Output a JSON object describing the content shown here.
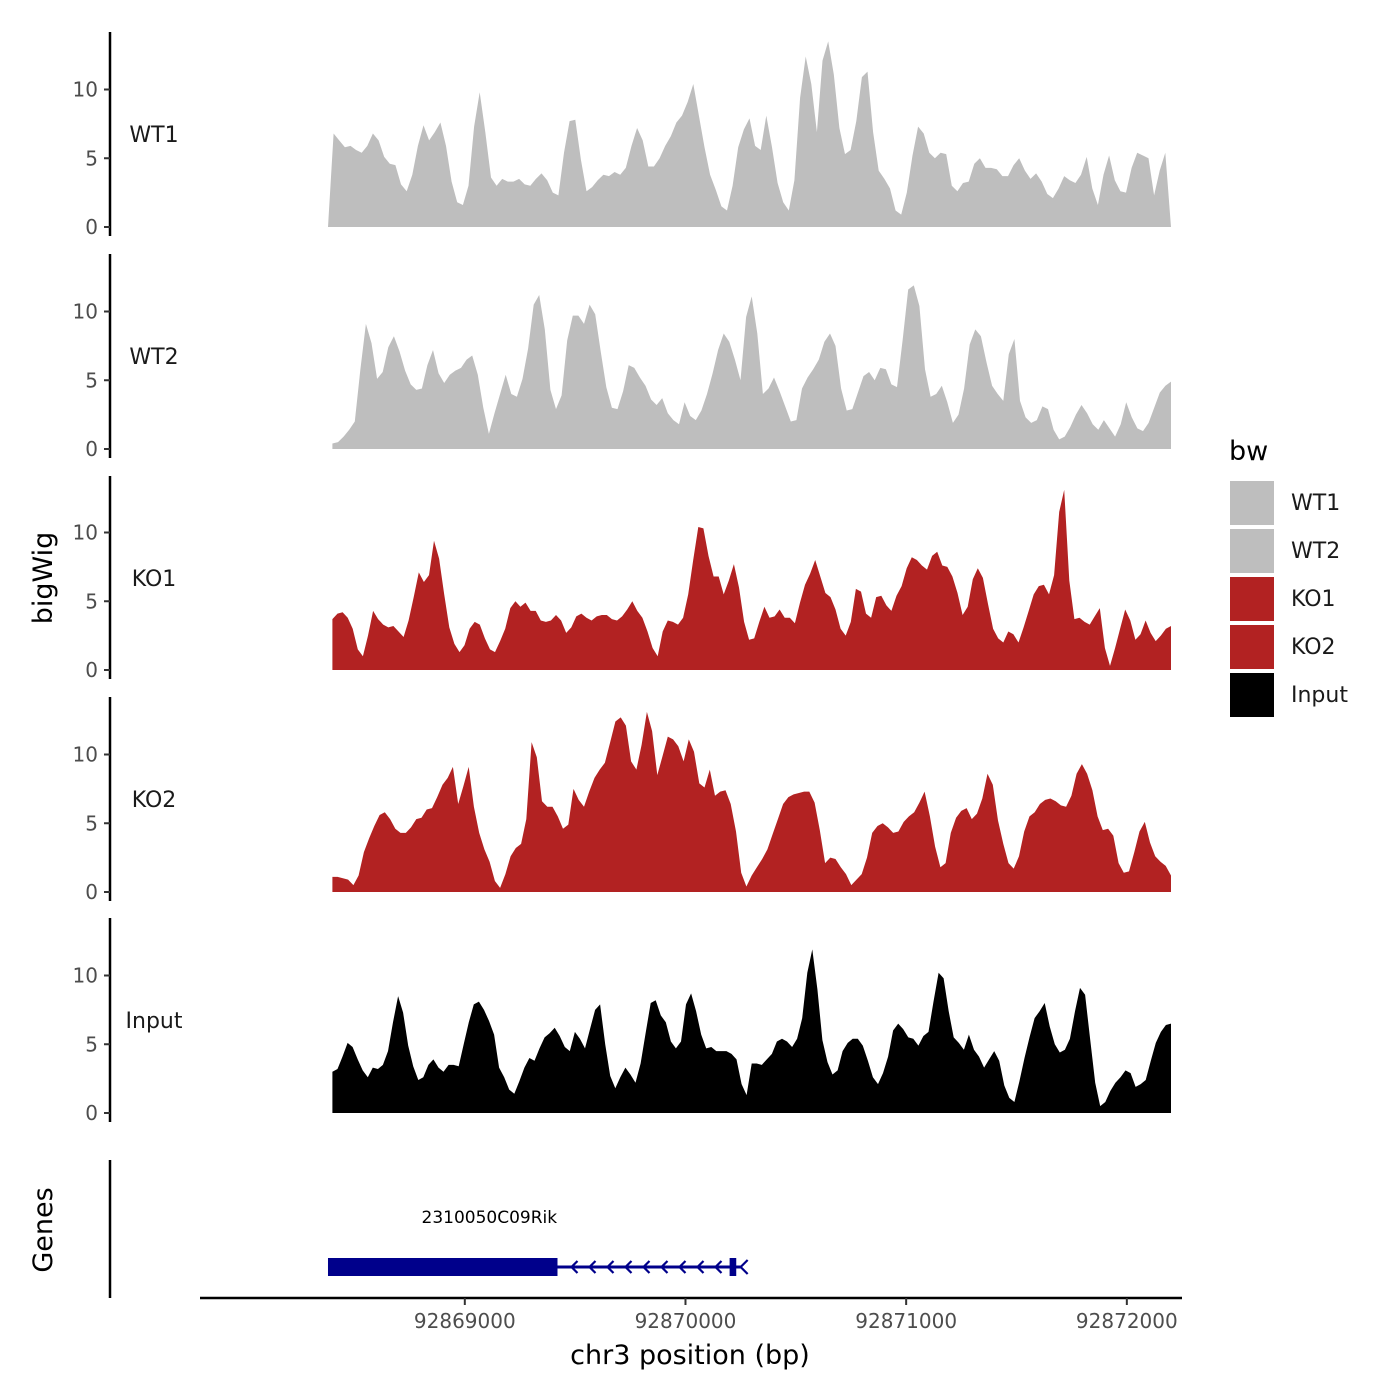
{
  "chart_data": {
    "type": "area",
    "ylabel": "bigWig",
    "xlabel": "chr3 position (bp)",
    "genes_panel_label": "Genes",
    "x_range": [
      92867800,
      92872250
    ],
    "x_ticks": [
      92869000,
      92870000,
      92871000,
      92872000
    ],
    "x_tick_labels": [
      "92869000",
      "92870000",
      "92871000",
      "92872000"
    ],
    "y_range": [
      0,
      14
    ],
    "y_ticks": [
      0,
      5,
      10
    ],
    "y_tick_labels": [
      "0",
      "5",
      "10"
    ],
    "legend": {
      "title": "bw",
      "entries": [
        {
          "label": "WT1",
          "color": "#bebebe"
        },
        {
          "label": "WT2",
          "color": "#bebebe"
        },
        {
          "label": "KO1",
          "color": "#b22222"
        },
        {
          "label": "KO2",
          "color": "#b22222"
        },
        {
          "label": "Input",
          "color": "#000000"
        }
      ]
    },
    "series": [
      {
        "name": "WT1",
        "color": "#bebebe",
        "x_start": 92868380,
        "x_end": 92872200,
        "values": [
          0,
          6.8,
          6.3,
          5.8,
          5.9,
          5.6,
          5.4,
          5.9,
          6.8,
          6.3,
          5.1,
          4.6,
          4.5,
          3.1,
          2.6,
          3.8,
          5.9,
          7.4,
          6.3,
          6.9,
          7.6,
          5.9,
          3.3,
          1.8,
          1.6,
          3.0,
          7.3,
          9.8,
          6.9,
          3.6,
          3.0,
          3.5,
          3.3,
          3.3,
          3.5,
          3.1,
          3.0,
          3.5,
          3.9,
          3.4,
          2.5,
          2.3,
          5.4,
          7.7,
          7.8,
          4.9,
          2.6,
          2.9,
          3.4,
          3.8,
          3.7,
          4.0,
          3.8,
          4.3,
          5.9,
          7.2,
          6.3,
          4.4,
          4.4,
          5.0,
          5.9,
          6.6,
          7.6,
          8.1,
          9.1,
          10.4,
          8.1,
          5.8,
          3.8,
          2.7,
          1.5,
          1.2,
          3.0,
          5.8,
          7.1,
          7.9,
          5.9,
          5.6,
          8.1,
          5.8,
          3.2,
          1.8,
          1.2,
          3.4,
          9.4,
          12.4,
          10.4,
          6.9,
          12.1,
          13.5,
          11.1,
          7.2,
          5.3,
          5.6,
          7.7,
          10.9,
          11.3,
          6.9,
          4.1,
          3.5,
          2.8,
          1.2,
          0.9,
          2.5,
          5.2,
          7.3,
          6.8,
          5.4,
          5.0,
          5.4,
          5.3,
          3.0,
          2.6,
          3.2,
          3.3,
          4.6,
          5.0,
          4.3,
          4.3,
          4.2,
          3.7,
          3.7,
          4.5,
          5.0,
          4.1,
          3.5,
          3.9,
          3.3,
          2.4,
          2.1,
          2.8,
          3.7,
          3.4,
          3.2,
          3.8,
          5.1,
          2.8,
          1.6,
          3.8,
          5.2,
          3.4,
          2.6,
          2.5,
          4.3,
          5.4,
          5.2,
          5.0,
          2.3,
          4.1,
          5.4,
          0
        ]
      },
      {
        "name": "WT2",
        "color": "#bebebe",
        "x_start": 92868400,
        "x_end": 92872200,
        "values": [
          0.4,
          0.5,
          0.9,
          1.4,
          2.0,
          5.8,
          9.1,
          7.7,
          5.1,
          5.6,
          7.4,
          8.2,
          7.1,
          5.7,
          4.7,
          4.3,
          4.4,
          6.1,
          7.2,
          5.5,
          4.8,
          5.4,
          5.7,
          5.9,
          6.5,
          6.8,
          5.4,
          3.0,
          1.1,
          2.6,
          4.0,
          5.4,
          4.0,
          3.8,
          5.1,
          7.3,
          10.5,
          11.2,
          8.7,
          4.3,
          2.9,
          3.9,
          7.9,
          9.7,
          9.7,
          9.1,
          10.5,
          9.8,
          7.1,
          4.5,
          3.0,
          2.9,
          4.2,
          6.1,
          5.9,
          5.2,
          4.6,
          3.6,
          3.2,
          3.7,
          2.6,
          2.1,
          1.8,
          3.4,
          2.4,
          2.1,
          2.8,
          4.0,
          5.5,
          7.2,
          8.4,
          7.8,
          6.5,
          5.0,
          9.6,
          11.1,
          8.4,
          4.0,
          4.4,
          5.2,
          4.2,
          3.1,
          2.0,
          2.1,
          4.4,
          5.2,
          5.8,
          6.5,
          7.8,
          8.4,
          7.5,
          4.4,
          2.8,
          2.9,
          4.1,
          5.3,
          5.6,
          5.0,
          5.9,
          5.8,
          4.7,
          4.5,
          7.9,
          11.6,
          11.9,
          10.4,
          5.8,
          3.8,
          4.0,
          4.6,
          3.4,
          1.9,
          2.5,
          4.4,
          7.6,
          8.7,
          8.2,
          6.3,
          4.6,
          4.0,
          3.5,
          6.9,
          8.0,
          3.5,
          2.3,
          1.9,
          2.1,
          3.1,
          2.9,
          1.4,
          0.7,
          0.9,
          1.6,
          2.5,
          3.2,
          2.6,
          1.8,
          1.4,
          2.1,
          1.5,
          0.9,
          1.8,
          3.4,
          2.3,
          1.5,
          1.3,
          1.9,
          3.0,
          4.1,
          4.6,
          4.9
        ]
      },
      {
        "name": "KO1",
        "color": "#b22222",
        "x_start": 92868400,
        "x_end": 92872200,
        "values": [
          3.7,
          4.1,
          4.2,
          3.8,
          3.0,
          1.5,
          1.0,
          2.5,
          4.3,
          3.7,
          3.3,
          3.1,
          3.2,
          2.8,
          2.4,
          3.6,
          5.3,
          7.1,
          6.4,
          6.9,
          9.4,
          8.1,
          5.5,
          3.1,
          1.9,
          1.3,
          1.8,
          3.0,
          3.5,
          3.3,
          2.3,
          1.5,
          1.3,
          2.1,
          3.0,
          4.5,
          5.0,
          4.6,
          4.9,
          4.3,
          4.3,
          3.6,
          3.5,
          3.6,
          4.0,
          3.6,
          2.7,
          3.1,
          3.9,
          4.1,
          3.8,
          3.6,
          3.9,
          4.0,
          4.0,
          3.7,
          3.6,
          3.9,
          4.4,
          5.0,
          4.3,
          3.8,
          2.8,
          1.6,
          1.0,
          2.8,
          3.6,
          3.5,
          3.3,
          3.8,
          5.5,
          8.0,
          10.4,
          10.3,
          8.3,
          6.8,
          6.8,
          5.5,
          6.5,
          7.7,
          6.0,
          3.5,
          2.2,
          2.3,
          3.5,
          4.6,
          3.8,
          3.9,
          4.4,
          3.8,
          3.8,
          3.4,
          4.9,
          6.2,
          7.0,
          8.0,
          6.8,
          5.6,
          5.3,
          4.4,
          3.0,
          2.5,
          3.5,
          5.9,
          5.7,
          4.1,
          3.8,
          5.3,
          5.4,
          4.7,
          4.3,
          5.4,
          6.1,
          7.4,
          8.2,
          8.0,
          7.6,
          7.3,
          8.3,
          8.6,
          7.6,
          7.5,
          6.8,
          5.6,
          4.0,
          4.6,
          6.6,
          7.4,
          6.7,
          4.8,
          3.0,
          2.3,
          2.0,
          2.8,
          2.6,
          2.0,
          3.1,
          4.3,
          5.5,
          6.1,
          6.2,
          5.5,
          6.9,
          11.5,
          13.1,
          6.5,
          3.7,
          3.8,
          3.5,
          3.3,
          3.9,
          4.5,
          1.6,
          0.3,
          1.6,
          3.0,
          4.4,
          3.6,
          2.2,
          2.6,
          3.6,
          2.7,
          2.1,
          2.5,
          3.0,
          3.2
        ]
      },
      {
        "name": "KO2",
        "color": "#b22222",
        "x_start": 92868400,
        "x_end": 92872200,
        "values": [
          1.1,
          1.1,
          1.0,
          0.9,
          0.5,
          1.2,
          2.9,
          3.9,
          4.8,
          5.6,
          5.8,
          5.3,
          4.6,
          4.3,
          4.3,
          4.7,
          5.3,
          5.4,
          6.0,
          6.1,
          6.9,
          7.8,
          8.3,
          9.1,
          6.4,
          7.7,
          9.1,
          6.2,
          4.3,
          3.1,
          2.2,
          0.8,
          0.3,
          1.3,
          2.6,
          3.2,
          3.5,
          5.3,
          10.9,
          9.8,
          6.6,
          6.2,
          6.2,
          5.5,
          4.6,
          4.9,
          7.5,
          6.7,
          6.2,
          7.3,
          8.3,
          8.9,
          9.4,
          10.9,
          12.4,
          12.7,
          12.1,
          9.5,
          8.9,
          10.7,
          13.1,
          11.7,
          8.5,
          9.9,
          11.3,
          11.1,
          10.6,
          9.5,
          11.1,
          10.2,
          7.9,
          7.6,
          8.9,
          7.0,
          7.3,
          7.4,
          6.4,
          4.4,
          1.4,
          0.4,
          1.2,
          1.8,
          2.4,
          3.1,
          4.2,
          5.3,
          6.4,
          6.9,
          7.1,
          7.2,
          7.3,
          7.3,
          6.5,
          4.5,
          2.1,
          2.5,
          2.4,
          1.8,
          1.3,
          0.5,
          0.9,
          1.3,
          2.5,
          4.3,
          4.8,
          5.0,
          4.7,
          4.3,
          4.4,
          5.1,
          5.5,
          5.8,
          6.5,
          7.3,
          5.5,
          3.3,
          1.8,
          2.1,
          4.3,
          5.4,
          5.9,
          6.1,
          5.3,
          5.7,
          6.8,
          8.6,
          7.8,
          5.2,
          3.5,
          2.1,
          1.7,
          2.6,
          4.4,
          5.5,
          5.8,
          6.4,
          6.7,
          6.8,
          6.6,
          6.3,
          6.2,
          7.0,
          8.6,
          9.3,
          8.6,
          7.4,
          5.5,
          4.5,
          4.6,
          4.1,
          2.1,
          1.4,
          1.5,
          2.9,
          4.4,
          5.1,
          3.6,
          2.6,
          2.2,
          1.9,
          1.2
        ]
      },
      {
        "name": "Input",
        "color": "#000000",
        "x_start": 92868400,
        "x_end": 92872200,
        "values": [
          3.0,
          3.2,
          4.1,
          5.1,
          4.8,
          3.9,
          3.1,
          2.6,
          3.3,
          3.2,
          3.5,
          4.5,
          6.6,
          8.5,
          7.3,
          4.9,
          3.4,
          2.4,
          2.6,
          3.5,
          3.9,
          3.3,
          3.0,
          3.5,
          3.5,
          3.4,
          5.0,
          6.6,
          7.9,
          8.1,
          7.5,
          6.7,
          5.7,
          3.3,
          2.6,
          1.7,
          1.4,
          2.3,
          3.3,
          4.0,
          3.8,
          4.7,
          5.5,
          5.8,
          6.2,
          5.6,
          4.8,
          4.5,
          5.9,
          5.4,
          4.7,
          6.1,
          7.5,
          7.9,
          5.0,
          2.7,
          1.8,
          2.6,
          3.3,
          2.8,
          2.2,
          3.6,
          5.8,
          8.0,
          8.2,
          7.1,
          6.6,
          5.2,
          4.7,
          5.2,
          7.9,
          8.7,
          7.4,
          5.7,
          4.7,
          4.8,
          4.5,
          4.5,
          4.5,
          4.3,
          3.9,
          2.1,
          1.3,
          3.6,
          3.6,
          3.5,
          3.9,
          4.3,
          5.2,
          5.4,
          5.2,
          4.8,
          5.4,
          6.9,
          10.2,
          11.9,
          9.0,
          5.3,
          3.7,
          2.8,
          3.1,
          4.5,
          5.1,
          5.4,
          5.4,
          4.9,
          3.8,
          2.6,
          2.1,
          2.9,
          4.1,
          6.0,
          6.5,
          6.1,
          5.5,
          5.4,
          4.9,
          5.6,
          5.9,
          8.1,
          10.2,
          9.8,
          7.4,
          5.5,
          5.1,
          4.6,
          5.7,
          4.6,
          4.1,
          3.3,
          3.9,
          4.5,
          3.8,
          2.0,
          1.1,
          0.8,
          2.3,
          4.0,
          5.5,
          6.9,
          7.4,
          8.0,
          6.3,
          5.0,
          4.4,
          4.6,
          5.4,
          7.4,
          9.1,
          8.6,
          5.4,
          2.2,
          0.5,
          0.8,
          1.6,
          2.2,
          2.6,
          3.1,
          2.9,
          1.9,
          2.1,
          2.4,
          3.8,
          5.1,
          5.9,
          6.4,
          6.5
        ]
      }
    ],
    "genes": [
      {
        "name": "2310050C09Rik",
        "strand": "-",
        "start": 92868380,
        "end": 92870250,
        "thick_start": 92868380,
        "thick_end": 92869420,
        "end_exon": [
          92870200,
          92870230
        ]
      }
    ]
  }
}
